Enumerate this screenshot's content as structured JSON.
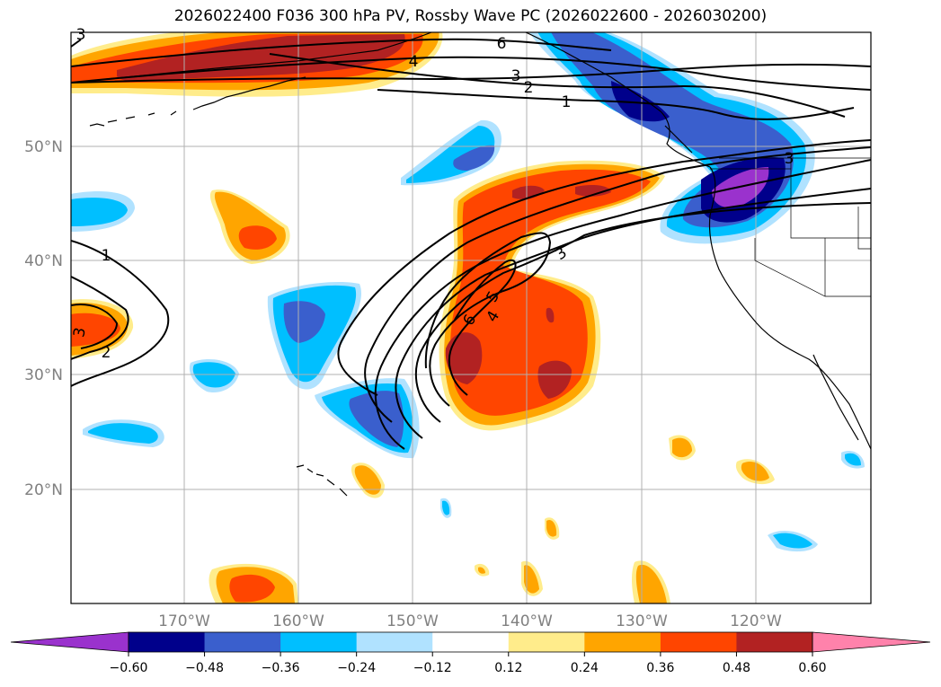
{
  "title": "2026022400 F036 300 hPa PV, Rossby Wave PC (2026022600 - 2026030200)",
  "map": {
    "projection": "lat-lon",
    "lon_range_deg": [
      -180,
      -110
    ],
    "lat_range_deg": [
      10,
      60
    ],
    "grid": true,
    "lat_labels": [
      "50°N",
      "40°N",
      "30°N",
      "20°N"
    ],
    "lon_labels": [
      "170°W",
      "160°W",
      "150°W",
      "140°W",
      "130°W",
      "120°W"
    ]
  },
  "contours": {
    "color": "#000000",
    "labels": [
      "6",
      "4",
      "3",
      "2",
      "1",
      "3",
      "1",
      "2",
      "3",
      "3",
      "5",
      "4",
      "6",
      "3"
    ]
  },
  "colorbar": {
    "ticks": [
      "−0.60",
      "−0.48",
      "−0.36",
      "−0.24",
      "−0.12",
      "0.12",
      "0.24",
      "0.36",
      "0.48",
      "0.60"
    ],
    "colors": [
      "#9a32cd",
      "#00008b",
      "#3a5fcd",
      "#00bfff",
      "#b0e2ff",
      "#ffffff",
      "#ffec8b",
      "#ffa500",
      "#ff4500",
      "#b22222",
      "#ff82ab"
    ],
    "extend": "both"
  },
  "fill_colors": {
    "purple": "#9a32cd",
    "navy": "#00008b",
    "blue": "#3a5fcd",
    "cyan": "#00bfff",
    "lightblue": "#b0e2ff",
    "lightyellow": "#ffec8b",
    "orange": "#ffa500",
    "redorange": "#ff4500",
    "darkred": "#b22222"
  }
}
